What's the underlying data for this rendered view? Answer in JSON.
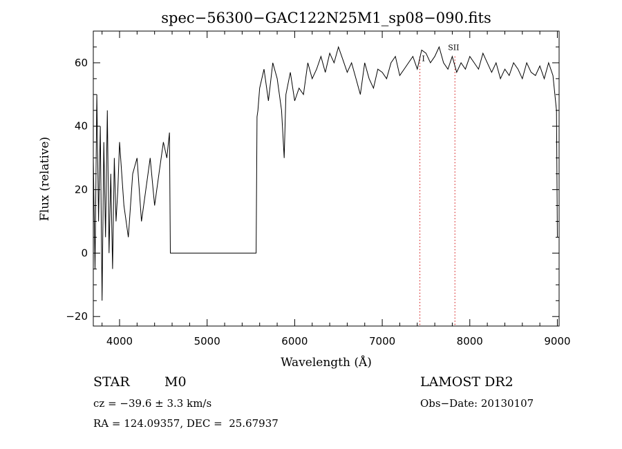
{
  "chart_data": {
    "type": "line",
    "title": "spec−56300−GAC122N25M1_sp08−090.fits",
    "xlabel": "Wavelength (Å)",
    "ylabel": "Flux (relative)",
    "xlim": [
      3700,
      9020
    ],
    "ylim": [
      -23,
      70
    ],
    "x_ticks": [
      4000,
      5000,
      6000,
      7000,
      8000,
      9000
    ],
    "x_tick_labels": [
      "4000",
      "5000",
      "6000",
      "7000",
      "8000",
      "9000"
    ],
    "y_ticks": [
      -20,
      0,
      20,
      40,
      60
    ],
    "y_tick_labels": [
      "−20",
      "0",
      "20",
      "40",
      "60"
    ],
    "series": [
      {
        "x": [
          3700,
          3720,
          3740,
          3760,
          3780,
          3800,
          3820,
          3840,
          3860,
          3880,
          3900,
          3920,
          3940,
          3960,
          3980,
          4000,
          4050,
          4100,
          4150,
          4200,
          4250,
          4300,
          4350,
          4400,
          4450,
          4500,
          4540,
          4570,
          4580,
          4590,
          5560,
          5570,
          5580,
          5600,
          5650,
          5700,
          5750,
          5800,
          5850,
          5880,
          5900,
          5950,
          6000,
          6050,
          6100,
          6150,
          6200,
          6250,
          6300,
          6350,
          6400,
          6450,
          6500,
          6550,
          6600,
          6650,
          6700,
          6750,
          6800,
          6850,
          6900,
          6950,
          7000,
          7050,
          7100,
          7150,
          7200,
          7250,
          7300,
          7350,
          7400,
          7450,
          7500,
          7550,
          7600,
          7650,
          7700,
          7750,
          7800,
          7850,
          7900,
          7950,
          8000,
          8050,
          8100,
          8150,
          8200,
          8250,
          8300,
          8350,
          8400,
          8450,
          8500,
          8550,
          8600,
          8650,
          8700,
          8750,
          8800,
          8850,
          8900,
          8950,
          8990,
          9000
        ],
        "y": [
          30,
          -5,
          50,
          10,
          40,
          -15,
          35,
          5,
          45,
          0,
          25,
          -5,
          30,
          10,
          20,
          35,
          15,
          5,
          25,
          30,
          10,
          20,
          30,
          15,
          25,
          35,
          30,
          38,
          0,
          0,
          0,
          43,
          45,
          52,
          58,
          48,
          60,
          55,
          45,
          30,
          50,
          57,
          48,
          52,
          50,
          60,
          55,
          58,
          62,
          57,
          63,
          60,
          65,
          61,
          57,
          60,
          55,
          50,
          60,
          55,
          52,
          58,
          57,
          55,
          60,
          62,
          56,
          58,
          60,
          62,
          58,
          64,
          63,
          60,
          62,
          65,
          60,
          58,
          62,
          57,
          60,
          58,
          62,
          60,
          58,
          63,
          60,
          57,
          60,
          55,
          58,
          56,
          60,
          58,
          55,
          60,
          57,
          56,
          59,
          55,
          60,
          56,
          45,
          5
        ]
      }
    ],
    "annotations": {
      "line1_label": "I",
      "line2_label": "SII",
      "line1_x": 7430,
      "line2_x": 7830
    }
  },
  "info": {
    "class_label": "STAR",
    "subclass": "M0",
    "survey": "LAMOST DR2",
    "cz": "cz = −39.6 ± 3.3 km/s",
    "obs_date": "Obs−Date: 20130107",
    "coords": "RA = 124.09357, DEC =  25.67937"
  }
}
